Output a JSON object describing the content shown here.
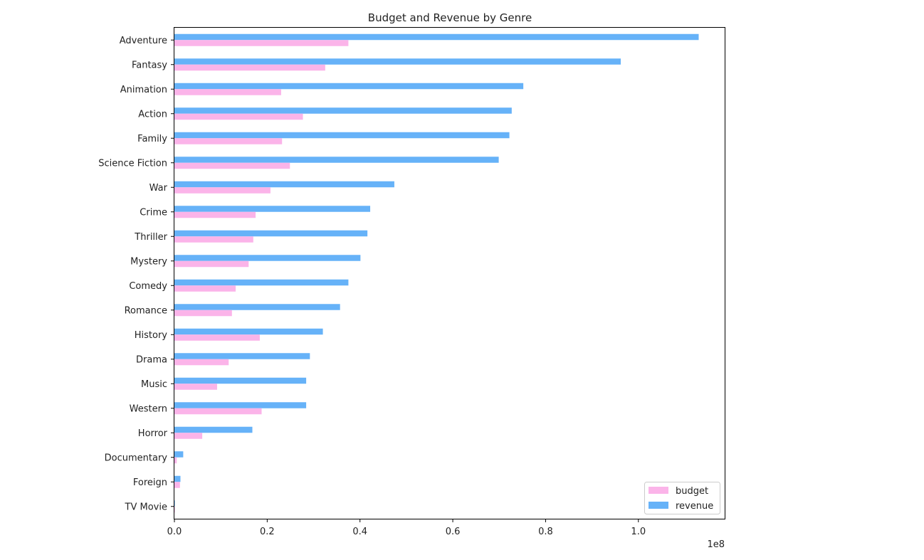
{
  "chart_data": {
    "type": "bar",
    "orientation": "horizontal",
    "title": "Budget and Revenue by Genre",
    "xlabel": "",
    "ylabel": "",
    "x_scale_label": "1e8",
    "xlim": [
      0,
      1.186
    ],
    "xticks": [
      0.0,
      0.2,
      0.4,
      0.6,
      0.8,
      1.0
    ],
    "xtick_labels": [
      "0.0",
      "0.2",
      "0.4",
      "0.6",
      "0.8",
      "1.0"
    ],
    "categories": [
      "Adventure",
      "Fantasy",
      "Animation",
      "Action",
      "Family",
      "Science Fiction",
      "War",
      "Crime",
      "Thriller",
      "Mystery",
      "Comedy",
      "Romance",
      "History",
      "Drama",
      "Music",
      "Western",
      "Horror",
      "Documentary",
      "Foreign",
      "TV Movie"
    ],
    "series": [
      {
        "name": "budget",
        "color": "#fbb4e9",
        "values": [
          0.375,
          0.325,
          0.23,
          0.277,
          0.232,
          0.249,
          0.207,
          0.175,
          0.17,
          0.16,
          0.132,
          0.124,
          0.184,
          0.117,
          0.092,
          0.188,
          0.06,
          0.005,
          0.012,
          0.001
        ]
      },
      {
        "name": "revenue",
        "color": "#66b2f8",
        "values": [
          1.13,
          0.962,
          0.752,
          0.727,
          0.722,
          0.699,
          0.474,
          0.422,
          0.416,
          0.401,
          0.375,
          0.357,
          0.32,
          0.292,
          0.284,
          0.284,
          0.168,
          0.019,
          0.013,
          0.001
        ]
      }
    ],
    "legend_position": "lower-right",
    "grid": false
  }
}
